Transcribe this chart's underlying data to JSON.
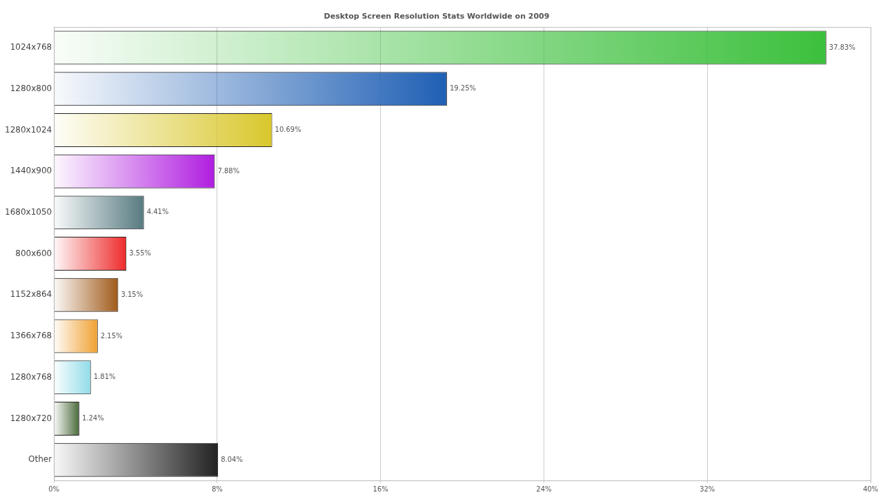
{
  "chart_data": {
    "type": "bar",
    "orientation": "horizontal",
    "subtitle": "Desktop Screen Resolution Stats Worldwide on 2009",
    "categories": [
      "1024x768",
      "1280x800",
      "1280x1024",
      "1440x900",
      "1680x1050",
      "800x600",
      "1152x864",
      "1366x768",
      "1280x768",
      "1280x720",
      "Other"
    ],
    "values": [
      37.83,
      19.25,
      10.69,
      7.88,
      4.41,
      3.55,
      3.15,
      2.15,
      1.81,
      1.24,
      8.04
    ],
    "colors": [
      "#3cc03c",
      "#1f5fb4",
      "#d9c72c",
      "#b01de0",
      "#567a80",
      "#ee2a2a",
      "#a05a1a",
      "#f0a030",
      "#90dce8",
      "#4a6a3a",
      "#222222"
    ],
    "value_labels": [
      "37.83%",
      "19.25%",
      "10.69%",
      "7.88%",
      "4.41%",
      "3.55%",
      "3.15%",
      "2.15%",
      "1.81%",
      "1.24%",
      "8.04%"
    ],
    "xlim": [
      0,
      40
    ],
    "xticks": [
      {
        "value": 0,
        "label": "0%"
      },
      {
        "value": 8,
        "label": "8%"
      },
      {
        "value": 16,
        "label": "16%"
      },
      {
        "value": 24,
        "label": "24%"
      },
      {
        "value": 32,
        "label": "32%"
      },
      {
        "value": 40,
        "label": "40%"
      }
    ],
    "grid": "x",
    "legend": false
  }
}
